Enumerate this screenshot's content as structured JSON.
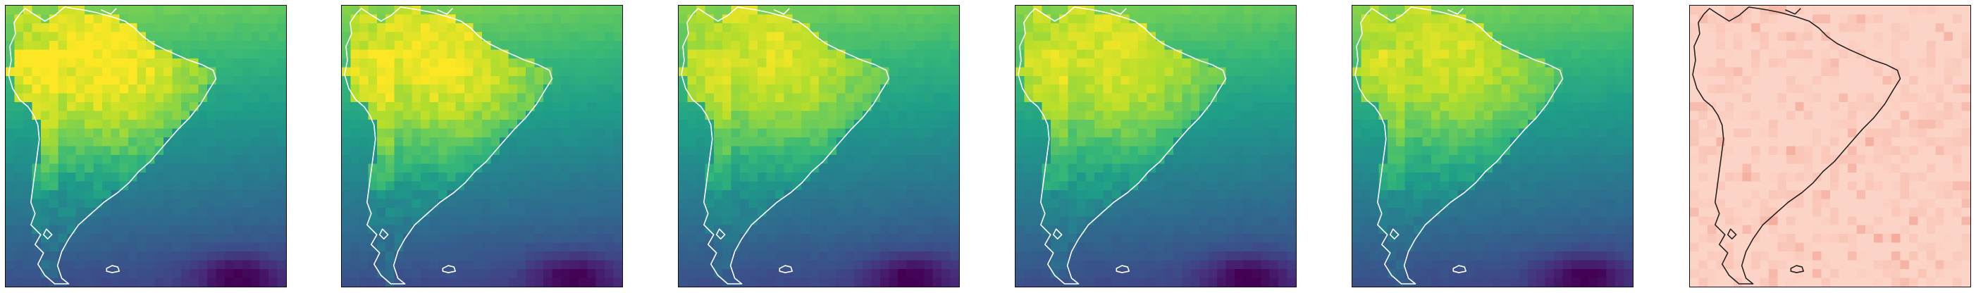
{
  "figure": {
    "panel_count": 6,
    "region": "South America",
    "panels": [
      {
        "id": "panel-1",
        "colormap": "viridis",
        "coastline_color": "#ffffff",
        "intensity": 1.0
      },
      {
        "id": "panel-2",
        "colormap": "viridis",
        "coastline_color": "#ffffff",
        "intensity": 0.92
      },
      {
        "id": "panel-3",
        "colormap": "viridis",
        "coastline_color": "#ffffff",
        "intensity": 0.8
      },
      {
        "id": "panel-4",
        "colormap": "viridis",
        "coastline_color": "#ffffff",
        "intensity": 0.8
      },
      {
        "id": "panel-5",
        "colormap": "viridis",
        "coastline_color": "#ffffff",
        "intensity": 0.76
      },
      {
        "id": "panel-6",
        "colormap": "reds-light",
        "coastline_color": "#222222",
        "intensity": 0.0
      }
    ]
  }
}
